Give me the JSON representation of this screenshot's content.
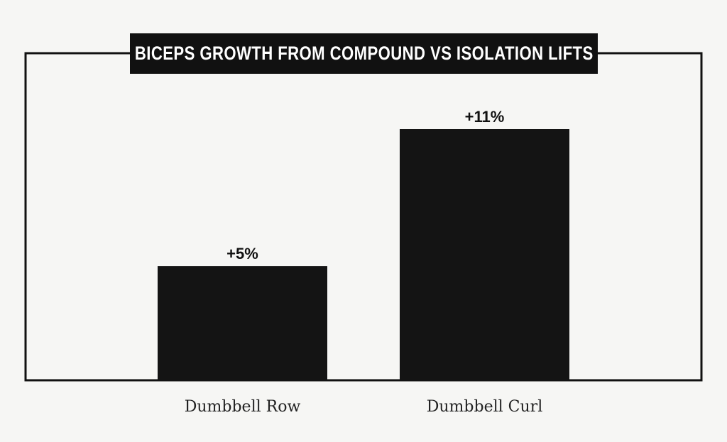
{
  "chart_data": {
    "type": "bar",
    "title": "BICEPS GROWTH FROM COMPOUND VS ISOLATION LIFTS",
    "categories": [
      "Dumbbell Row",
      "Dumbbell Curl"
    ],
    "values": [
      5,
      11
    ],
    "data_labels": [
      "+5%",
      "+11%"
    ],
    "xlabel": "",
    "ylabel": "",
    "ylim": [
      0,
      14
    ],
    "grid": false,
    "bar_color": "#141414"
  }
}
